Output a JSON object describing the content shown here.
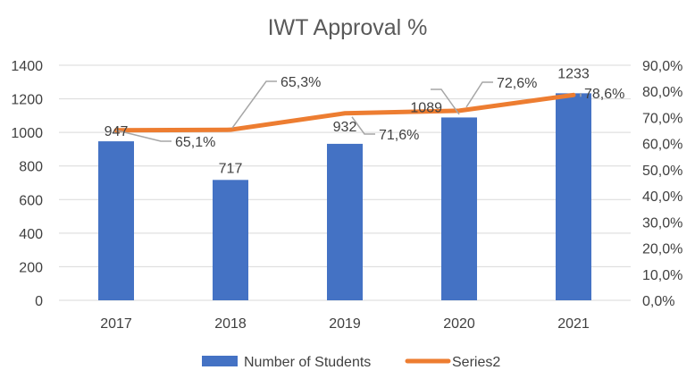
{
  "chart_data": {
    "type": "bar",
    "title": "IWT Approval %",
    "categories": [
      "2017",
      "2018",
      "2019",
      "2020",
      "2021"
    ],
    "series": [
      {
        "name": "Number of Students",
        "type": "bar",
        "axis": "left",
        "values": [
          947,
          717,
          932,
          1089,
          1233
        ],
        "labels": [
          "947",
          "717",
          "932",
          "1089",
          "1233"
        ],
        "color": "#4472C4"
      },
      {
        "name": "Series2",
        "type": "line",
        "axis": "right",
        "values": [
          65.1,
          65.3,
          71.6,
          72.6,
          78.6
        ],
        "labels": [
          "65,1%",
          "65,3%",
          "71,6%",
          "72,6%",
          "78,6%"
        ],
        "color": "#ED7D31"
      }
    ],
    "y_left": {
      "ylim": [
        0,
        1400
      ],
      "ticks": [
        "0",
        "200",
        "400",
        "600",
        "800",
        "1000",
        "1200",
        "1400"
      ]
    },
    "y_right": {
      "ylim": [
        0,
        90
      ],
      "ticks": [
        "0,0%",
        "10,0%",
        "20,0%",
        "30,0%",
        "40,0%",
        "50,0%",
        "60,0%",
        "70,0%",
        "80,0%",
        "90,0%"
      ]
    },
    "grid": true,
    "legend": "bottom"
  }
}
